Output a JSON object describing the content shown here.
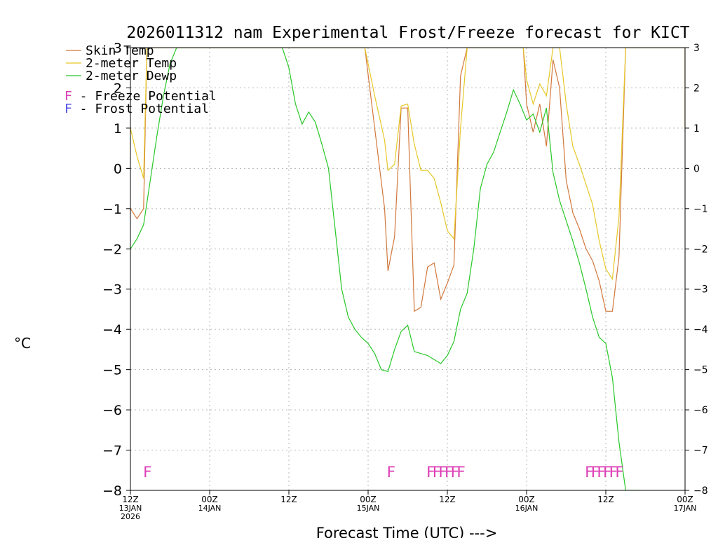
{
  "chart_data": {
    "type": "line",
    "title": "2026011312 nam Experimental Frost/Freeze forecast for KICT",
    "xlabel": "Forecast Time (UTC) --->",
    "ylabel": "°C",
    "ylim": [
      -8,
      3
    ],
    "xlim": [
      0,
      84
    ],
    "y_ticks": [
      -8,
      -7,
      -6,
      -5,
      -4,
      -3,
      -2,
      -1,
      0,
      1,
      2,
      3
    ],
    "x_ticks": [
      {
        "x": 0,
        "lines": [
          "12Z",
          "13JAN",
          "2026"
        ]
      },
      {
        "x": 12,
        "lines": [
          "00Z",
          "14JAN"
        ]
      },
      {
        "x": 24,
        "lines": [
          "12Z"
        ]
      },
      {
        "x": 36,
        "lines": [
          "00Z",
          "15JAN"
        ]
      },
      {
        "x": 48,
        "lines": [
          "12Z"
        ]
      },
      {
        "x": 60,
        "lines": [
          "00Z",
          "16JAN"
        ]
      },
      {
        "x": 72,
        "lines": [
          "12Z"
        ]
      },
      {
        "x": 84,
        "lines": [
          "00Z",
          "17JAN"
        ]
      }
    ],
    "grid": true,
    "legend": [
      {
        "name": "Skin Temp",
        "color": "#d2783c"
      },
      {
        "name": "2-meter Temp",
        "color": "#e6c828"
      },
      {
        "name": "2-meter Dewp",
        "color": "#28c828"
      }
    ],
    "potential_legend": [
      {
        "symbol": "F",
        "label": " - Freeze Potential",
        "color": "#dc3cb4"
      },
      {
        "symbol": "F",
        "label": " - Frost Potential",
        "color": "#5050e6"
      }
    ],
    "series": [
      {
        "name": "Skin Temp",
        "color": "#d2783c",
        "x": [
          0,
          1,
          2,
          2.5,
          3,
          4.5,
          23,
          35.5,
          37,
          38.5,
          39,
          40,
          41,
          42,
          43,
          44,
          45,
          46,
          47,
          48,
          49,
          50,
          51,
          51.5,
          52,
          59.5,
          60,
          61,
          62,
          63,
          64,
          65,
          66,
          67,
          68,
          69,
          70,
          71,
          72,
          73,
          74,
          75,
          75.5,
          84,
          84
        ],
        "values": [
          -1.0,
          -1.25,
          -1.0,
          3.0,
          3.0,
          3.0,
          3.0,
          3.0,
          1.0,
          -1.0,
          -2.55,
          -1.7,
          1.5,
          1.5,
          -3.55,
          -3.45,
          -2.45,
          -2.35,
          -3.25,
          -2.85,
          -2.4,
          2.3,
          3.0,
          3.0,
          3.0,
          3.0,
          1.6,
          0.9,
          1.6,
          0.55,
          2.7,
          2.0,
          -0.3,
          -1.1,
          -1.5,
          -2.0,
          -2.3,
          -2.8,
          -3.55,
          -3.55,
          -2.2,
          3.0,
          3.0,
          3.0,
          0.9
        ]
      },
      {
        "name": "2-meter Temp",
        "color": "#e6c828",
        "x": [
          0,
          1,
          2,
          2.5,
          3,
          4.5,
          23,
          35.5,
          37,
          38.5,
          39,
          40,
          41,
          42,
          43,
          44,
          45,
          46,
          47,
          48,
          49,
          50,
          51,
          51.5,
          52,
          59.5,
          60,
          61,
          62,
          63,
          64,
          65,
          66,
          67,
          68,
          69,
          70,
          71,
          72,
          73,
          74,
          75,
          75.5,
          84,
          84
        ],
        "values": [
          1.0,
          0.3,
          -0.25,
          3.0,
          3.0,
          3.0,
          3.0,
          3.0,
          1.8,
          0.7,
          -0.05,
          0.1,
          1.55,
          1.6,
          0.6,
          -0.05,
          -0.05,
          -0.25,
          -0.85,
          -1.55,
          -1.75,
          1.0,
          3.0,
          3.0,
          3.0,
          3.0,
          2.2,
          1.6,
          2.1,
          1.8,
          3.0,
          3.0,
          1.6,
          0.55,
          0.1,
          -0.4,
          -0.9,
          -1.8,
          -2.5,
          -2.75,
          -1.2,
          3.0,
          3.0,
          3.0,
          1.0
        ]
      },
      {
        "name": "2-meter Dewp",
        "color": "#28c828",
        "x": [
          0,
          1,
          2,
          3,
          4,
          5,
          6,
          7,
          23,
          24,
          25,
          26,
          27,
          28,
          29,
          30,
          31,
          32,
          33,
          34,
          35,
          36,
          37,
          38,
          39,
          40,
          41,
          42,
          43,
          44,
          45,
          46,
          47,
          48,
          49,
          50,
          51,
          52,
          53,
          54,
          55,
          56,
          57,
          58,
          59,
          60,
          61,
          62,
          63,
          64,
          65,
          66,
          67,
          68,
          69,
          70,
          71,
          72,
          73,
          74,
          75,
          76,
          77
        ],
        "values": [
          -2.0,
          -1.75,
          -1.4,
          -0.3,
          0.8,
          1.8,
          2.6,
          3.0,
          3.0,
          2.5,
          1.6,
          1.1,
          1.4,
          1.15,
          0.6,
          0.0,
          -1.5,
          -3.0,
          -3.7,
          -4.0,
          -4.2,
          -4.35,
          -4.6,
          -5.0,
          -5.05,
          -4.5,
          -4.05,
          -3.9,
          -4.55,
          -4.6,
          -4.65,
          -4.75,
          -4.85,
          -4.65,
          -4.3,
          -3.5,
          -3.1,
          -2.0,
          -0.5,
          0.1,
          0.4,
          0.9,
          1.4,
          1.95,
          1.6,
          1.2,
          1.35,
          0.9,
          1.5,
          -0.1,
          -0.8,
          -1.3,
          -1.8,
          -2.35,
          -3.0,
          -3.7,
          -4.2,
          -4.35,
          -5.2,
          -6.8,
          -8.0,
          -8.0,
          -8.0
        ]
      }
    ],
    "markers": [
      {
        "x": 1.9,
        "label": "F",
        "color": "#dc3cb4"
      },
      {
        "x": 38.8,
        "label": "F",
        "color": "#dc3cb4"
      },
      {
        "x": 44.8,
        "label": "FFFFFF",
        "color": "#dc3cb4"
      },
      {
        "x": 68.8,
        "label": "FFFFFF",
        "color": "#dc3cb4"
      }
    ]
  }
}
